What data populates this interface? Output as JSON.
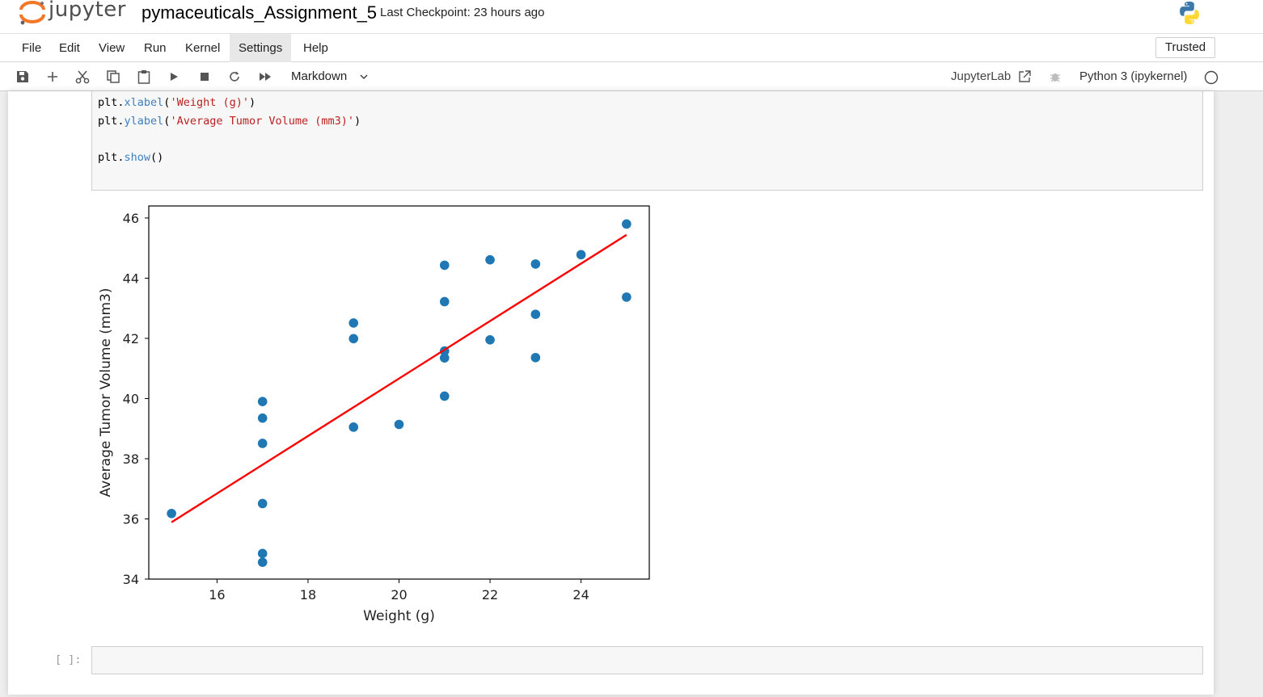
{
  "header": {
    "logo_text": "jupyter",
    "notebook_title": "pymaceuticals_Assignment_5",
    "checkpoint": "Last Checkpoint: 23 hours ago"
  },
  "menu": {
    "items": [
      "File",
      "Edit",
      "View",
      "Run",
      "Kernel",
      "Settings",
      "Help"
    ],
    "active": "Settings",
    "trusted": "Trusted"
  },
  "toolbar": {
    "icons": [
      "save-icon",
      "plus-icon",
      "scissors-icon",
      "copy-icon",
      "paste-icon",
      "play-icon",
      "stop-icon",
      "restart-icon",
      "fast-forward-icon"
    ],
    "cell_type": "Markdown",
    "jupyterlab_link": "JupyterLab",
    "kernel": "Python 3 (ipykernel)"
  },
  "code_cell": {
    "lines": [
      "plt.xlabel('Weight (g)')",
      "plt.ylabel('Average Tumor Volume (mm3)')",
      "",
      "plt.show()"
    ]
  },
  "empty_cell": {
    "prompt": "[ ]:"
  },
  "chart_data": {
    "type": "scatter",
    "title": "",
    "xlabel": "Weight (g)",
    "ylabel": "Average Tumor Volume (mm3)",
    "xlim": [
      14.5,
      25.5
    ],
    "ylim": [
      34,
      46.4
    ],
    "xticks": [
      16,
      18,
      20,
      22,
      24
    ],
    "yticks": [
      34,
      36,
      38,
      40,
      42,
      44,
      46
    ],
    "grid": false,
    "point_color": "#1f77b4",
    "line_color": "#ff0000",
    "points": {
      "x": [
        15,
        17,
        17,
        17,
        17,
        17,
        17,
        19,
        19,
        19,
        20,
        21,
        21,
        21,
        21,
        21,
        22,
        22,
        23,
        23,
        23,
        24,
        25,
        25
      ],
      "y": [
        36.18,
        39.9,
        39.35,
        38.51,
        36.51,
        34.85,
        34.56,
        42.51,
        41.99,
        39.05,
        39.14,
        44.43,
        43.22,
        41.58,
        41.35,
        40.08,
        44.61,
        41.95,
        44.47,
        42.8,
        41.36,
        44.78,
        45.8,
        43.37
      ]
    },
    "regression_line": {
      "x": [
        15,
        25
      ],
      "y": [
        35.89,
        45.44
      ]
    }
  }
}
